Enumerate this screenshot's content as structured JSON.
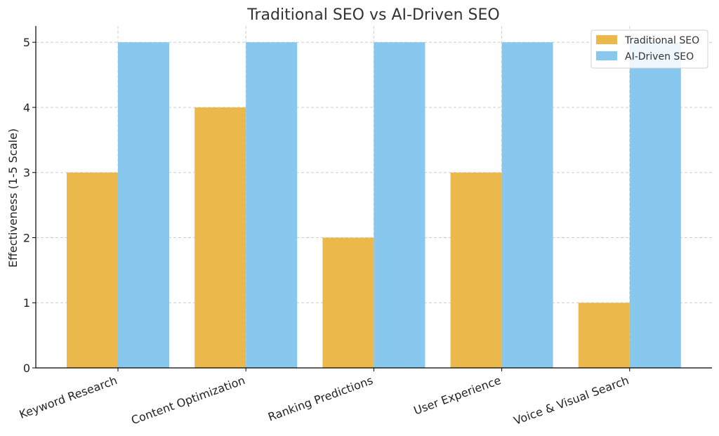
{
  "chart_data": {
    "type": "bar",
    "title": "Traditional SEO vs AI-Driven SEO",
    "xlabel": "",
    "ylabel": "Effectiveness (1-5 Scale)",
    "ylim": [
      0,
      5.25
    ],
    "yticks": [
      0,
      1,
      2,
      3,
      4,
      5
    ],
    "grid": true,
    "legend_position": "top-right",
    "categories": [
      "Keyword Research",
      "Content Optimization",
      "Ranking Predictions",
      "User Experience",
      "Voice & Visual Search"
    ],
    "series": [
      {
        "name": "Traditional SEO",
        "color": "#EBB94B",
        "values": [
          3,
          4,
          2,
          3,
          1
        ]
      },
      {
        "name": "AI-Driven SEO",
        "color": "#89C8EE",
        "values": [
          5,
          5,
          5,
          5,
          5
        ]
      }
    ]
  }
}
